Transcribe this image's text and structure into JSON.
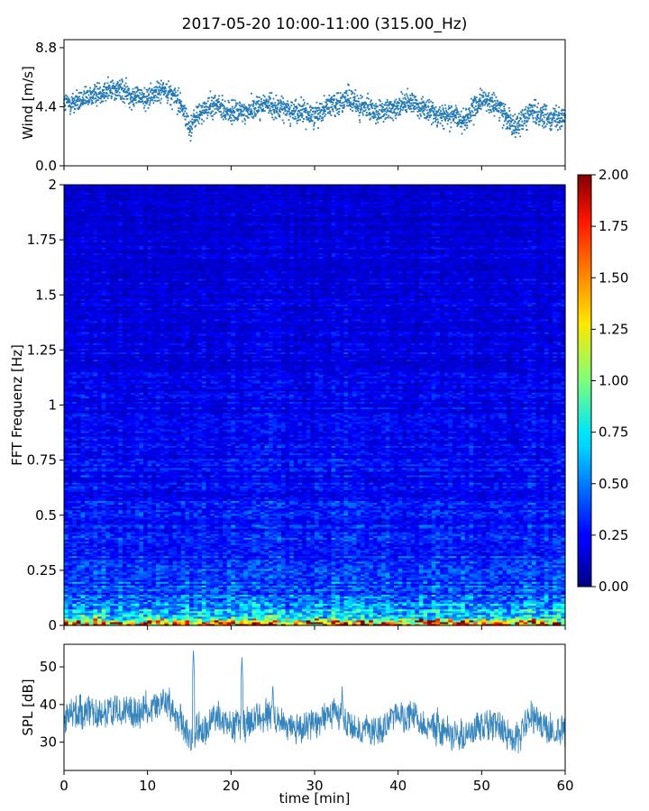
{
  "title": "2017-05-20 10:00-11:00 (315.00_Hz)",
  "colors": {
    "series": "#1f77b4",
    "colormap": "jet",
    "axis": "#000000",
    "background": "#ffffff"
  },
  "chart_data": [
    {
      "type": "scatter",
      "name": "wind",
      "xlabel": "",
      "ylabel": "Wind [m/s]",
      "xlim": [
        0,
        60
      ],
      "ylim": [
        0,
        9.4
      ],
      "yticks": [
        0.0,
        4.4,
        8.8
      ],
      "ytick_labels": [
        "0.0",
        "4.4",
        "8.8"
      ],
      "grid": false,
      "point_count": 2600,
      "trend_x": [
        0,
        2,
        4,
        6,
        8,
        10,
        12,
        14,
        15,
        16,
        18,
        20,
        22,
        24,
        26,
        28,
        30,
        32,
        34,
        36,
        38,
        40,
        42,
        44,
        46,
        48,
        50,
        52,
        54,
        56,
        58,
        60
      ],
      "trend_y": [
        4.6,
        4.8,
        5.4,
        5.8,
        5.3,
        5.0,
        5.8,
        4.7,
        2.8,
        3.8,
        4.6,
        3.9,
        4.1,
        4.6,
        4.3,
        4.0,
        3.8,
        4.6,
        4.9,
        4.3,
        3.9,
        4.5,
        4.7,
        3.9,
        3.8,
        3.4,
        4.9,
        4.4,
        3.0,
        4.0,
        3.6,
        3.7
      ],
      "spread": 0.8
    },
    {
      "type": "heatmap",
      "name": "spectrogram",
      "xlabel": "",
      "ylabel": "FFT Frequenz [Hz]",
      "xlim": [
        0,
        60
      ],
      "ylim": [
        0,
        2
      ],
      "yticks": [
        0,
        0.25,
        0.5,
        0.75,
        1,
        1.25,
        1.5,
        1.75,
        2
      ],
      "ytick_labels": [
        "0",
        "0.25",
        "0.5",
        "0.75",
        "1",
        "1.25",
        "1.5",
        "1.75",
        "2"
      ],
      "colorbar": {
        "min": 0.0,
        "max": 2.0,
        "ticks": [
          0.0,
          0.25,
          0.5,
          0.75,
          1.0,
          1.25,
          1.5,
          1.75,
          2.0
        ],
        "tick_labels": [
          "0.00",
          "0.25",
          "0.50",
          "0.75",
          "1.00",
          "1.25",
          "1.50",
          "1.75",
          "2.00"
        ],
        "colormap": "jet"
      },
      "time_bins": 120,
      "freq_bins": 240,
      "freq_profile_f": [
        0,
        0.02,
        0.05,
        0.1,
        0.15,
        0.25,
        0.5,
        1.0,
        2.0
      ],
      "freq_profile_v": [
        1.6,
        0.95,
        0.7,
        0.5,
        0.4,
        0.33,
        0.28,
        0.22,
        0.16
      ]
    },
    {
      "type": "line",
      "name": "spl",
      "xlabel": "time [min]",
      "ylabel": "SPL [dB]",
      "xlim": [
        0,
        60
      ],
      "ylim": [
        22.5,
        56
      ],
      "xticks": [
        0,
        10,
        20,
        30,
        40,
        50,
        60
      ],
      "xtick_labels": [
        "0",
        "10",
        "20",
        "30",
        "40",
        "50",
        "60"
      ],
      "yticks": [
        30,
        40,
        50
      ],
      "ytick_labels": [
        "30",
        "40",
        "50"
      ],
      "grid": false,
      "trend_x": [
        0,
        2,
        4,
        6,
        8,
        10,
        12,
        14,
        15,
        16,
        18,
        20,
        22,
        24,
        26,
        28,
        30,
        32,
        34,
        36,
        38,
        40,
        42,
        44,
        46,
        48,
        50,
        52,
        54,
        56,
        58,
        60
      ],
      "trend_y": [
        36,
        38,
        37,
        39,
        38,
        39,
        41,
        36,
        31,
        33,
        36,
        34,
        35,
        37,
        36,
        34,
        34,
        37,
        35,
        33,
        34,
        37,
        37,
        34,
        33,
        31,
        35,
        34,
        30,
        37,
        34,
        33
      ],
      "spikes_x": [
        15.5,
        21.3,
        25.0,
        33.3
      ],
      "spikes_y": [
        55,
        53,
        46,
        45
      ],
      "band": 3.5
    }
  ]
}
